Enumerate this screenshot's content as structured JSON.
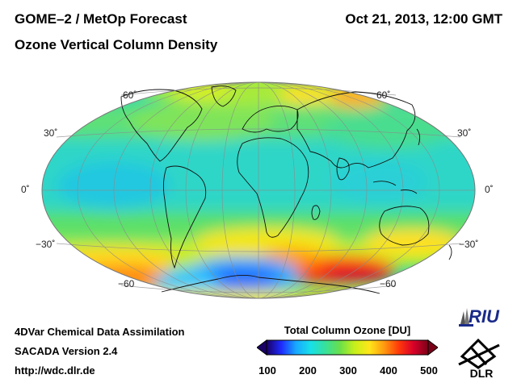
{
  "header": {
    "title": "GOME–2 / MetOp Forecast",
    "subtitle": "Ozone Vertical Column Density",
    "date": "Oct 21, 2013, 12:00 GMT"
  },
  "map": {
    "projection": "Hammer-Aitoff",
    "lat_labels": {
      "left": [
        "60˚",
        "30˚",
        "0˚",
        "−30˚",
        "−60"
      ],
      "right": [
        "60˚",
        "30˚",
        "0˚",
        "−30˚",
        "−60"
      ]
    }
  },
  "colorbar": {
    "title": "Total Column Ozone [DU]",
    "ticks": [
      "100",
      "200",
      "300",
      "400",
      "500"
    ],
    "min": 100,
    "max": 500,
    "colors": [
      "#1a0066",
      "#1e2bff",
      "#17a8ff",
      "#18e0e8",
      "#38e09a",
      "#6ae04a",
      "#c8ef1a",
      "#ffe61a",
      "#ff9a10",
      "#ff3a0a",
      "#d8002a",
      "#7a0018"
    ]
  },
  "footer": {
    "line1": "4DVar Chemical Data Assimilation",
    "line2": "SACADA Version 2.4",
    "line3": "http://wdc.dlr.de"
  },
  "logos": {
    "riu": "RIU",
    "dlr": "DLR"
  }
}
